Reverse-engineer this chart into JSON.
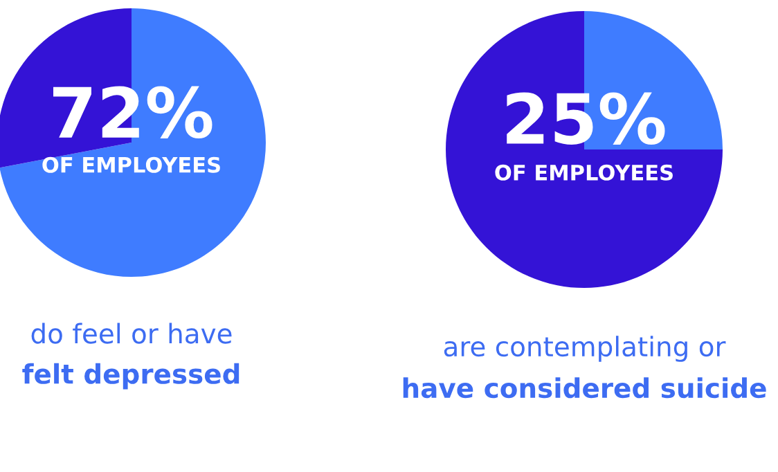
{
  "chart_data": [
    {
      "type": "pie",
      "categories": [
        null,
        null
      ],
      "values": [
        72,
        28
      ],
      "colors": [
        "#3f7cff",
        "#3413d6"
      ],
      "value_labels": [
        "72%",
        null
      ],
      "annotations": [
        "OF EMPLOYEES",
        "do feel or have",
        "felt depressed"
      ]
    },
    {
      "type": "pie",
      "categories": [
        null,
        null
      ],
      "values": [
        25,
        75
      ],
      "colors": [
        "#3f7cff",
        "#3413d6"
      ],
      "value_labels": [
        "25%",
        null
      ],
      "annotations": [
        "OF EMPLOYEES",
        "are contemplating or",
        "have considered suicide"
      ]
    }
  ]
}
